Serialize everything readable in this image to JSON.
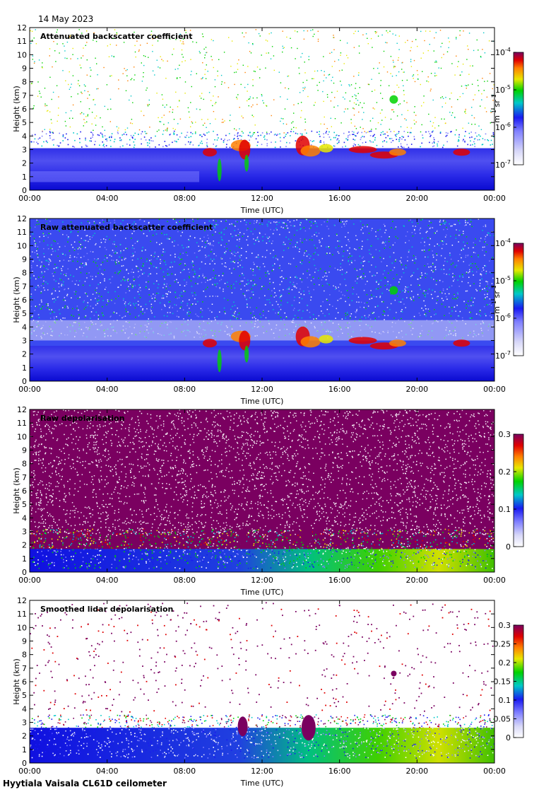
{
  "header": {
    "date": "14 May 2023"
  },
  "footer": {
    "station": "Hyytiala Vaisala CL61D ceilometer"
  },
  "colors": {
    "white": "#ffffff",
    "lavender": "#d8d8f8",
    "light_blue": "#8080ff",
    "blue": "#1a1af0",
    "cyan": "#00c8c8",
    "green": "#00d200",
    "yellow": "#e8e800",
    "orange": "#ff8000",
    "red": "#e00000",
    "purple": "#7a0060"
  },
  "chart_data": [
    {
      "type": "heatmap",
      "title": "Attenuated backscatter coefficient",
      "xlabel": "Time (UTC)",
      "ylabel": "Height (km)",
      "x_tick_labels": [
        "00:00",
        "04:00",
        "08:00",
        "12:00",
        "16:00",
        "20:00",
        "00:00"
      ],
      "y_tick_labels": [
        "0",
        "1",
        "2",
        "3",
        "4",
        "5",
        "6",
        "7",
        "8",
        "9",
        "10",
        "11",
        "12"
      ],
      "ylim": [
        0,
        12
      ],
      "colorbar": {
        "scale": "log",
        "range": [
          1e-07,
          0.0001
        ],
        "tick_labels": [
          "10^-7",
          "10^-6",
          "10^-5",
          "10^-4"
        ],
        "label": "m^-1 sr^-1"
      }
    },
    {
      "type": "heatmap",
      "title": "Raw attenuated backscatter coefficient",
      "xlabel": "Time (UTC)",
      "ylabel": "Height (km)",
      "x_tick_labels": [
        "00:00",
        "04:00",
        "08:00",
        "12:00",
        "16:00",
        "20:00",
        "00:00"
      ],
      "y_tick_labels": [
        "0",
        "1",
        "2",
        "3",
        "4",
        "5",
        "6",
        "7",
        "8",
        "9",
        "10",
        "11",
        "12"
      ],
      "ylim": [
        0,
        12
      ],
      "colorbar": {
        "scale": "log",
        "range": [
          1e-07,
          0.0001
        ],
        "tick_labels": [
          "10^-7",
          "10^-6",
          "10^-5",
          "10^-4"
        ],
        "label": "m^-1 sr^-1"
      }
    },
    {
      "type": "heatmap",
      "title": "Raw depolarisation",
      "xlabel": "Time (UTC)",
      "ylabel": "Height (km)",
      "x_tick_labels": [
        "00:00",
        "04:00",
        "08:00",
        "12:00",
        "16:00",
        "20:00",
        "00:00"
      ],
      "y_tick_labels": [
        "0",
        "1",
        "2",
        "3",
        "4",
        "5",
        "6",
        "7",
        "8",
        "9",
        "10",
        "11",
        "12"
      ],
      "ylim": [
        0,
        12
      ],
      "colorbar": {
        "scale": "linear",
        "range": [
          0,
          0.3
        ],
        "tick_labels": [
          "0",
          "0.1",
          "0.2",
          "0.3"
        ],
        "label": ""
      }
    },
    {
      "type": "heatmap",
      "title": "Smoothed lidar depolarisation",
      "xlabel": "Time (UTC)",
      "ylabel": "Height (km)",
      "x_tick_labels": [
        "00:00",
        "04:00",
        "08:00",
        "12:00",
        "16:00",
        "20:00",
        "00:00"
      ],
      "y_tick_labels": [
        "0",
        "1",
        "2",
        "3",
        "4",
        "5",
        "6",
        "7",
        "8",
        "9",
        "10",
        "11",
        "12"
      ],
      "ylim": [
        0,
        12
      ],
      "colorbar": {
        "scale": "linear",
        "range": [
          0,
          0.3
        ],
        "tick_labels": [
          "0",
          "0.05",
          "0.1",
          "0.15",
          "0.2",
          "0.25",
          "0.3"
        ],
        "label": ""
      }
    }
  ]
}
